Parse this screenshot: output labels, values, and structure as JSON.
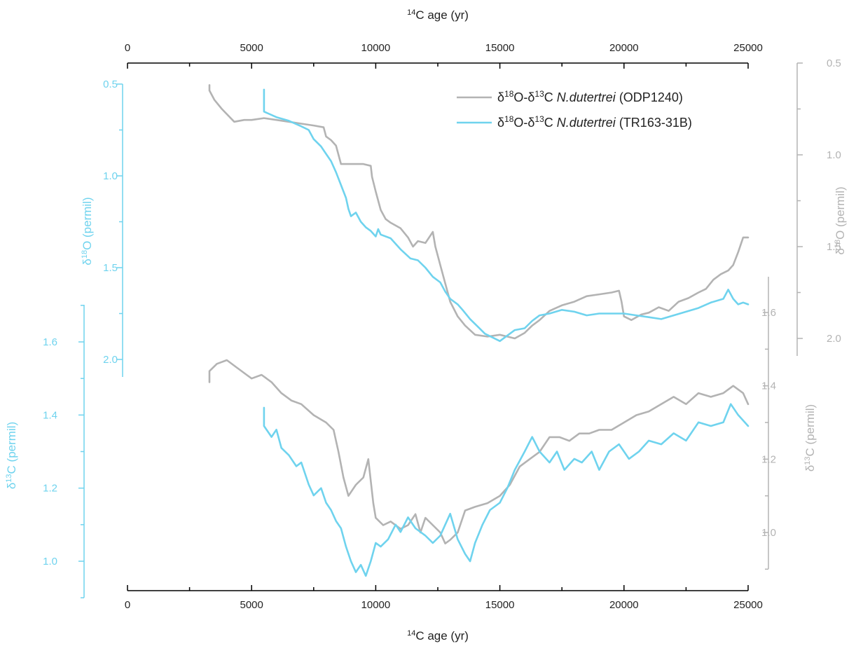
{
  "colors": {
    "odp": "#b3b3b3",
    "tr": "#6fd3ee",
    "axis": "#000000",
    "text": "#222222"
  },
  "chart_data": {
    "type": "line",
    "x_axis": {
      "label_sup": "14",
      "label_rest": "C age (yr)",
      "range": [
        0,
        25000
      ],
      "ticks": [
        0,
        5000,
        10000,
        15000,
        20000,
        25000
      ],
      "tick_labels": [
        "0",
        "5000",
        "10000",
        "15000",
        "20000",
        "25000"
      ]
    },
    "axes": {
      "d18o_left": {
        "label_pre": "δ",
        "label_sup": "18",
        "label_rest": "O (permil)",
        "range": [
          0.5,
          2.1
        ],
        "reversed": true,
        "ticks": [
          0.5,
          1.0,
          1.5,
          2.0
        ],
        "tick_labels": [
          "0.5",
          "1.0",
          "1.5",
          "2.0"
        ]
      },
      "d13c_left": {
        "label_pre": "δ",
        "label_sup": "13",
        "label_rest": "C (permil)",
        "range": [
          0.9,
          1.7
        ],
        "ticks": [
          1.0,
          1.2,
          1.4,
          1.6
        ],
        "tick_labels": [
          "1.0",
          "1.2",
          "1.4",
          "1.6"
        ]
      },
      "d18o_right": {
        "label_pre": "δ",
        "label_sup": "18",
        "label_rest": "O (permil)",
        "range": [
          0.5,
          2.1
        ],
        "reversed": true,
        "ticks": [
          0.5,
          1.0,
          1.5,
          2.0
        ],
        "tick_labels": [
          "0.5",
          "1.0",
          "1.5",
          "2.0"
        ]
      },
      "d13c_right": {
        "label_pre": "δ",
        "label_sup": "13",
        "label_rest": "C (permil)",
        "range": [
          0.9,
          1.7
        ],
        "ticks": [
          1.0,
          1.2,
          1.4,
          1.6
        ],
        "tick_labels": [
          "1.0",
          "1.2",
          "1.4",
          "1.6"
        ]
      }
    },
    "legend": {
      "placement": "top-right",
      "entries": [
        {
          "series": "odp",
          "pre": "δ",
          "sup1": "18",
          "mid": "O-δ",
          "sup2": "13",
          "mid2": "C ",
          "italic": "N.dutertrei",
          "post": " (ODP1240)"
        },
        {
          "series": "tr",
          "pre": "δ",
          "sup1": "18",
          "mid": "O-δ",
          "sup2": "13",
          "mid2": "C ",
          "italic": "N.dutertrei",
          "post": " (TR163-31B)"
        }
      ]
    },
    "series": [
      {
        "id": "odp",
        "name": "ODP1240",
        "color": "#b3b3b3",
        "axis": "d18o_right",
        "x": [
          3300,
          3300,
          3500,
          3800,
          4300,
          4700,
          5000,
          5500,
          6000,
          6500,
          7000,
          7500,
          7900,
          8000,
          8200,
          8400,
          8600,
          9000,
          9500,
          9800,
          9850,
          10000,
          10200,
          10400,
          10600,
          11000,
          11300,
          11500,
          11700,
          12000,
          12300,
          12400,
          12600,
          12800,
          13000,
          13300,
          13600,
          14000,
          14500,
          15000,
          15300,
          15600,
          16000,
          16300,
          16600,
          17000,
          17500,
          18000,
          18500,
          19000,
          19500,
          19800,
          19900,
          20000,
          20300,
          20700,
          21000,
          21400,
          21800,
          22200,
          22600,
          23000,
          23300,
          23600,
          23900,
          24200,
          24400,
          24600,
          24800,
          25000
        ],
        "y": [
          0.62,
          0.65,
          0.7,
          0.75,
          0.82,
          0.81,
          0.81,
          0.8,
          0.81,
          0.82,
          0.83,
          0.84,
          0.85,
          0.9,
          0.92,
          0.95,
          1.05,
          1.05,
          1.05,
          1.06,
          1.12,
          1.2,
          1.3,
          1.35,
          1.37,
          1.4,
          1.45,
          1.5,
          1.47,
          1.48,
          1.42,
          1.5,
          1.6,
          1.7,
          1.8,
          1.88,
          1.93,
          1.98,
          1.99,
          1.98,
          1.99,
          2.0,
          1.97,
          1.93,
          1.9,
          1.85,
          1.82,
          1.8,
          1.77,
          1.76,
          1.75,
          1.74,
          1.8,
          1.88,
          1.9,
          1.87,
          1.86,
          1.83,
          1.85,
          1.8,
          1.78,
          1.75,
          1.73,
          1.68,
          1.65,
          1.63,
          1.6,
          1.53,
          1.45,
          1.45
        ]
      },
      {
        "id": "tr",
        "name": "TR163-31B",
        "color": "#6fd3ee",
        "axis": "d18o_left",
        "x": [
          5500,
          5500,
          6000,
          6500,
          7000,
          7300,
          7500,
          7800,
          8000,
          8200,
          8400,
          8600,
          8800,
          8900,
          9000,
          9200,
          9400,
          9600,
          9800,
          10000,
          10100,
          10200,
          10600,
          11000,
          11400,
          11700,
          12000,
          12300,
          12600,
          12800,
          13000,
          13300,
          13500,
          13800,
          14100,
          14400,
          14700,
          15000,
          15300,
          15600,
          16000,
          16300,
          16600,
          17000,
          17500,
          18000,
          18500,
          19000,
          19500,
          20000,
          20500,
          21000,
          21500,
          22000,
          22500,
          23000,
          23500,
          24000,
          24200,
          24400,
          24600,
          24800,
          25000
        ],
        "y": [
          0.53,
          0.65,
          0.68,
          0.7,
          0.73,
          0.75,
          0.8,
          0.84,
          0.88,
          0.92,
          0.98,
          1.05,
          1.12,
          1.18,
          1.22,
          1.2,
          1.25,
          1.28,
          1.3,
          1.33,
          1.29,
          1.32,
          1.34,
          1.4,
          1.45,
          1.46,
          1.5,
          1.55,
          1.58,
          1.63,
          1.67,
          1.7,
          1.73,
          1.78,
          1.82,
          1.86,
          1.88,
          1.9,
          1.87,
          1.84,
          1.83,
          1.79,
          1.76,
          1.75,
          1.73,
          1.74,
          1.76,
          1.75,
          1.75,
          1.75,
          1.76,
          1.77,
          1.78,
          1.76,
          1.74,
          1.72,
          1.69,
          1.67,
          1.62,
          1.67,
          1.7,
          1.69,
          1.7
        ]
      },
      {
        "id": "odp_c",
        "name": "ODP1240",
        "color": "#b3b3b3",
        "axis": "d13c_right",
        "x": [
          3300,
          3300,
          3600,
          4000,
          4400,
          4800,
          5000,
          5400,
          5800,
          6200,
          6600,
          7000,
          7500,
          8000,
          8300,
          8500,
          8700,
          8900,
          9200,
          9500,
          9700,
          9900,
          10000,
          10300,
          10600,
          11000,
          11300,
          11600,
          11800,
          12000,
          12300,
          12600,
          12800,
          13000,
          13300,
          13600,
          14000,
          14500,
          15000,
          15400,
          15800,
          16200,
          16600,
          17000,
          17400,
          17800,
          18200,
          18600,
          19000,
          19500,
          20000,
          20500,
          21000,
          21500,
          22000,
          22500,
          23000,
          23500,
          24000,
          24400,
          24800,
          25000
        ],
        "y": [
          1.41,
          1.44,
          1.46,
          1.47,
          1.45,
          1.43,
          1.42,
          1.43,
          1.41,
          1.38,
          1.36,
          1.35,
          1.32,
          1.3,
          1.28,
          1.22,
          1.15,
          1.1,
          1.13,
          1.15,
          1.2,
          1.08,
          1.04,
          1.02,
          1.03,
          1.01,
          1.02,
          1.05,
          1.0,
          1.04,
          1.02,
          1.0,
          0.97,
          0.98,
          1.0,
          1.06,
          1.07,
          1.08,
          1.1,
          1.13,
          1.18,
          1.2,
          1.22,
          1.26,
          1.26,
          1.25,
          1.27,
          1.27,
          1.28,
          1.28,
          1.3,
          1.32,
          1.33,
          1.35,
          1.37,
          1.35,
          1.38,
          1.37,
          1.38,
          1.4,
          1.38,
          1.35
        ]
      },
      {
        "id": "tr_c",
        "name": "TR163-31B",
        "color": "#6fd3ee",
        "axis": "d13c_left",
        "x": [
          5500,
          5500,
          5800,
          6000,
          6200,
          6500,
          6800,
          7000,
          7300,
          7500,
          7800,
          8000,
          8200,
          8400,
          8600,
          8800,
          9000,
          9200,
          9400,
          9600,
          9800,
          10000,
          10200,
          10500,
          10800,
          11000,
          11300,
          11600,
          12000,
          12300,
          12600,
          12800,
          13000,
          13300,
          13600,
          13800,
          14000,
          14300,
          14600,
          15000,
          15300,
          15600,
          16000,
          16300,
          16600,
          17000,
          17300,
          17600,
          18000,
          18300,
          18700,
          19000,
          19400,
          19800,
          20200,
          20600,
          21000,
          21500,
          22000,
          22500,
          23000,
          23500,
          24000,
          24300,
          24600,
          25000
        ],
        "y": [
          1.42,
          1.37,
          1.34,
          1.36,
          1.31,
          1.29,
          1.26,
          1.27,
          1.21,
          1.18,
          1.2,
          1.16,
          1.14,
          1.11,
          1.09,
          1.04,
          1.0,
          0.97,
          0.99,
          0.96,
          1.0,
          1.05,
          1.04,
          1.06,
          1.1,
          1.08,
          1.12,
          1.09,
          1.07,
          1.05,
          1.07,
          1.1,
          1.13,
          1.06,
          1.02,
          1.0,
          1.05,
          1.1,
          1.14,
          1.16,
          1.2,
          1.25,
          1.3,
          1.34,
          1.3,
          1.27,
          1.3,
          1.25,
          1.28,
          1.27,
          1.3,
          1.25,
          1.3,
          1.32,
          1.28,
          1.3,
          1.33,
          1.32,
          1.35,
          1.33,
          1.38,
          1.37,
          1.38,
          1.43,
          1.4,
          1.37
        ]
      }
    ]
  }
}
